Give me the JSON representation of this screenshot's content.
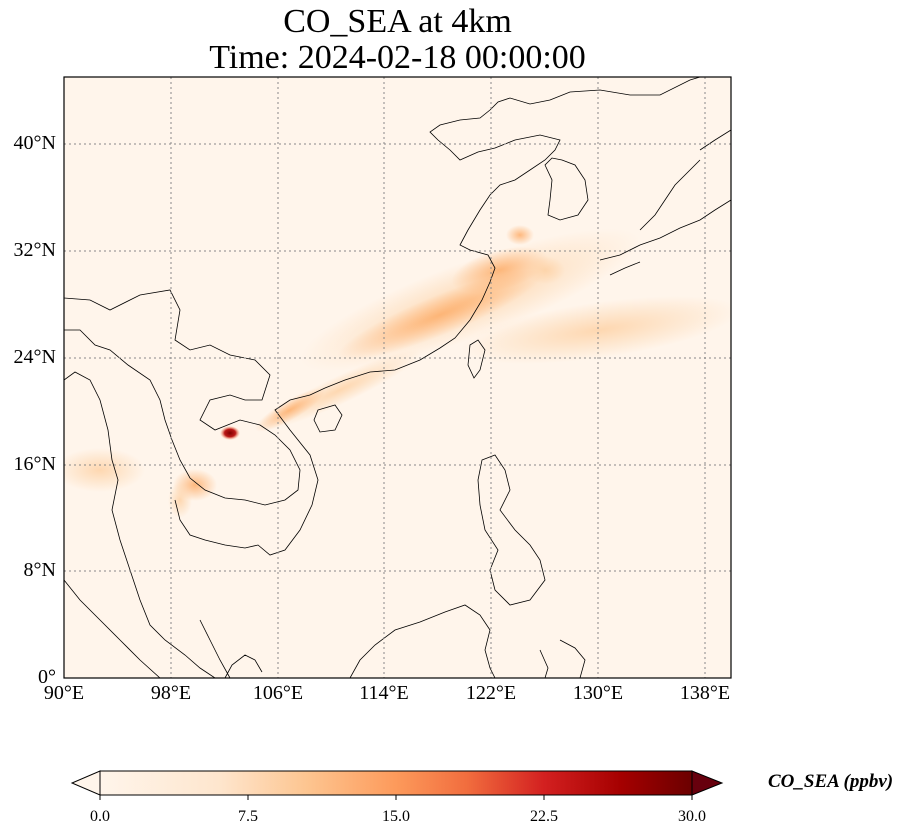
{
  "title": {
    "line1": "CO_SEA at 4km",
    "line2": "Time: 2024-02-18 00:00:00"
  },
  "map": {
    "lon_range": [
      90,
      140
    ],
    "lat_range": [
      0,
      45
    ],
    "gridlines": true,
    "x_ticks": [
      "90°E",
      "98°E",
      "106°E",
      "114°E",
      "122°E",
      "130°E",
      "138°E"
    ],
    "y_ticks": [
      "0°",
      "8°N",
      "16°N",
      "24°N",
      "32°N",
      "40°N"
    ],
    "background_color": "#fff5eb",
    "coastline_color": "#000000",
    "grid_color": "#888888"
  },
  "colorbar": {
    "label": "CO_SEA (ppbv)",
    "ticks": [
      "0.0",
      "7.5",
      "15.0",
      "22.5",
      "30.0"
    ],
    "range": [
      0,
      30
    ],
    "colormap": [
      "#fff5eb",
      "#fdd9b3",
      "#fdae6b",
      "#f16913",
      "#d94801",
      "#a50f15",
      "#67000d"
    ],
    "extend": "both"
  }
}
